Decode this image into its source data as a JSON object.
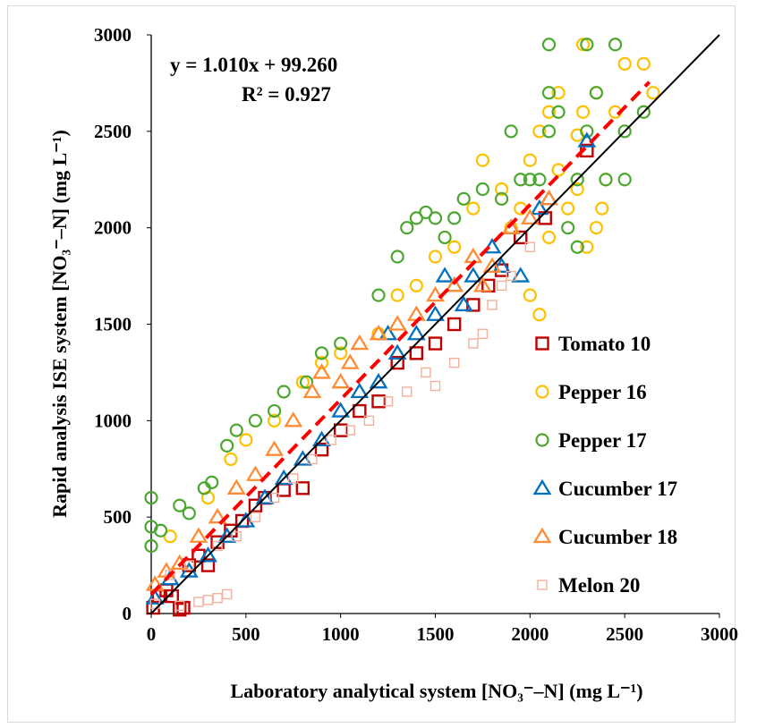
{
  "chart_data": {
    "type": "scatter",
    "xlabel": "Laboratory analytical system [NO₃⁻–N] (mg L⁻¹)",
    "ylabel": "Rapid analysis ISE system [NO₃⁻–N] (mg L⁻¹)",
    "xlim": [
      0,
      3000
    ],
    "ylim": [
      0,
      3000
    ],
    "x_ticks": [
      "0",
      "500",
      "1000",
      "1500",
      "2000",
      "2500",
      "3000"
    ],
    "y_ticks": [
      "0",
      "500",
      "1000",
      "1500",
      "2000",
      "2500",
      "3000"
    ],
    "grid": false,
    "legend_position": "bottom-right",
    "regression": {
      "equation": "y = 1.010x + 99.260",
      "r2": "R² = 0.927",
      "slope": 1.01,
      "intercept": 99.26,
      "color": "#ff0000",
      "x_range": [
        0,
        2630
      ]
    },
    "identity_line": {
      "x": [
        0,
        3000
      ],
      "y": [
        0,
        3000
      ],
      "color": "#000000"
    },
    "series": [
      {
        "name": "Tomato 10",
        "marker": "square",
        "color": "#c00000",
        "fill": false,
        "points": [
          [
            10,
            30
          ],
          [
            40,
            90
          ],
          [
            80,
            120
          ],
          [
            110,
            90
          ],
          [
            150,
            20
          ],
          [
            170,
            30
          ],
          [
            200,
            250
          ],
          [
            250,
            300
          ],
          [
            300,
            250
          ],
          [
            350,
            370
          ],
          [
            420,
            430
          ],
          [
            480,
            480
          ],
          [
            550,
            560
          ],
          [
            600,
            600
          ],
          [
            700,
            640
          ],
          [
            800,
            650
          ],
          [
            900,
            850
          ],
          [
            1000,
            950
          ],
          [
            1100,
            1050
          ],
          [
            1200,
            1100
          ],
          [
            1300,
            1300
          ],
          [
            1400,
            1350
          ],
          [
            1500,
            1400
          ],
          [
            1600,
            1500
          ],
          [
            1700,
            1600
          ],
          [
            1780,
            1700
          ],
          [
            1850,
            1780
          ],
          [
            1950,
            1950
          ],
          [
            2080,
            2050
          ],
          [
            2300,
            2400
          ]
        ]
      },
      {
        "name": "Pepper 16",
        "marker": "circle",
        "color": "#ffc000",
        "fill": false,
        "points": [
          [
            100,
            400
          ],
          [
            300,
            600
          ],
          [
            420,
            800
          ],
          [
            500,
            900
          ],
          [
            650,
            1000
          ],
          [
            800,
            1200
          ],
          [
            900,
            1300
          ],
          [
            1000,
            1350
          ],
          [
            1200,
            1450
          ],
          [
            1300,
            1650
          ],
          [
            1400,
            1700
          ],
          [
            1500,
            1850
          ],
          [
            1600,
            1900
          ],
          [
            1700,
            2100
          ],
          [
            1750,
            2350
          ],
          [
            1850,
            2200
          ],
          [
            1900,
            2000
          ],
          [
            1950,
            2100
          ],
          [
            2000,
            2350
          ],
          [
            2000,
            1650
          ],
          [
            2050,
            1550
          ],
          [
            2100,
            1950
          ],
          [
            2100,
            2600
          ],
          [
            2150,
            2700
          ],
          [
            2200,
            2100
          ],
          [
            2250,
            2480
          ],
          [
            2250,
            2200
          ],
          [
            2280,
            2600
          ],
          [
            2300,
            1900
          ],
          [
            2350,
            2000
          ],
          [
            2380,
            2100
          ],
          [
            2280,
            2950
          ],
          [
            2350,
            2700
          ],
          [
            2400,
            2250
          ],
          [
            2450,
            2600
          ],
          [
            2500,
            2850
          ],
          [
            2600,
            2850
          ],
          [
            2650,
            2700
          ],
          [
            2050,
            2500
          ],
          [
            2150,
            2300
          ]
        ]
      },
      {
        "name": "Pepper 17",
        "marker": "circle",
        "color": "#4ca730",
        "fill": false,
        "points": [
          [
            0,
            600
          ],
          [
            0,
            450
          ],
          [
            0,
            350
          ],
          [
            50,
            430
          ],
          [
            150,
            560
          ],
          [
            200,
            520
          ],
          [
            280,
            650
          ],
          [
            320,
            680
          ],
          [
            400,
            870
          ],
          [
            450,
            950
          ],
          [
            550,
            1000
          ],
          [
            650,
            1050
          ],
          [
            700,
            1150
          ],
          [
            820,
            1200
          ],
          [
            900,
            1350
          ],
          [
            1000,
            1400
          ],
          [
            1200,
            1650
          ],
          [
            1300,
            1850
          ],
          [
            1350,
            2000
          ],
          [
            1400,
            2050
          ],
          [
            1450,
            2080
          ],
          [
            1500,
            2050
          ],
          [
            1550,
            1950
          ],
          [
            1600,
            2050
          ],
          [
            1650,
            2150
          ],
          [
            1750,
            2200
          ],
          [
            1850,
            2150
          ],
          [
            1900,
            2500
          ],
          [
            1950,
            2250
          ],
          [
            2000,
            2250
          ],
          [
            2050,
            2250
          ],
          [
            2100,
            2500
          ],
          [
            2100,
            2700
          ],
          [
            2150,
            2600
          ],
          [
            2200,
            2000
          ],
          [
            2250,
            2250
          ],
          [
            2250,
            1900
          ],
          [
            2300,
            2500
          ],
          [
            2350,
            2700
          ],
          [
            2100,
            2950
          ],
          [
            2300,
            2950
          ],
          [
            2450,
            2950
          ],
          [
            2500,
            2500
          ],
          [
            2400,
            2250
          ],
          [
            2500,
            2250
          ],
          [
            2600,
            2600
          ]
        ]
      },
      {
        "name": "Cucumber 17",
        "marker": "triangle",
        "color": "#0070c0",
        "fill": false,
        "points": [
          [
            20,
            80
          ],
          [
            100,
            180
          ],
          [
            200,
            220
          ],
          [
            300,
            300
          ],
          [
            400,
            400
          ],
          [
            500,
            480
          ],
          [
            600,
            600
          ],
          [
            700,
            700
          ],
          [
            800,
            800
          ],
          [
            900,
            900
          ],
          [
            1000,
            1050
          ],
          [
            1100,
            1150
          ],
          [
            1200,
            1200
          ],
          [
            1250,
            1450
          ],
          [
            1300,
            1350
          ],
          [
            1400,
            1450
          ],
          [
            1500,
            1550
          ],
          [
            1550,
            1750
          ],
          [
            1600,
            1700
          ],
          [
            1650,
            1600
          ],
          [
            1700,
            1750
          ],
          [
            1800,
            1900
          ],
          [
            1850,
            1800
          ],
          [
            1900,
            2000
          ],
          [
            1950,
            1750
          ],
          [
            2050,
            2100
          ],
          [
            2100,
            2150
          ],
          [
            2300,
            2450
          ]
        ]
      },
      {
        "name": "Cucumber 18",
        "marker": "triangle",
        "color": "#ff8c35",
        "fill": false,
        "points": [
          [
            20,
            150
          ],
          [
            80,
            220
          ],
          [
            150,
            260
          ],
          [
            250,
            400
          ],
          [
            350,
            500
          ],
          [
            450,
            650
          ],
          [
            550,
            720
          ],
          [
            650,
            850
          ],
          [
            750,
            1000
          ],
          [
            850,
            1150
          ],
          [
            900,
            1250
          ],
          [
            1000,
            1200
          ],
          [
            1050,
            1300
          ],
          [
            1100,
            1400
          ],
          [
            1200,
            1450
          ],
          [
            1300,
            1500
          ],
          [
            1400,
            1550
          ],
          [
            1500,
            1650
          ],
          [
            1600,
            1700
          ],
          [
            1700,
            1850
          ],
          [
            1750,
            1700
          ],
          [
            1800,
            1800
          ],
          [
            1900,
            2000
          ],
          [
            2000,
            2050
          ],
          [
            2100,
            2150
          ]
        ]
      },
      {
        "name": "Melon 20",
        "marker": "square",
        "color": "#f4b09c",
        "fill": false,
        "points": [
          [
            20,
            50
          ],
          [
            150,
            40
          ],
          [
            250,
            60
          ],
          [
            300,
            70
          ],
          [
            350,
            80
          ],
          [
            400,
            100
          ],
          [
            100,
            200
          ],
          [
            200,
            250
          ],
          [
            350,
            350
          ],
          [
            450,
            400
          ],
          [
            550,
            500
          ],
          [
            650,
            600
          ],
          [
            750,
            700
          ],
          [
            850,
            800
          ],
          [
            950,
            900
          ],
          [
            1050,
            950
          ],
          [
            1150,
            1000
          ],
          [
            1250,
            1100
          ],
          [
            1350,
            1150
          ],
          [
            1450,
            1250
          ],
          [
            1500,
            1180
          ],
          [
            1600,
            1300
          ],
          [
            1700,
            1400
          ],
          [
            1750,
            1450
          ],
          [
            1800,
            1600
          ],
          [
            1850,
            1700
          ],
          [
            1900,
            1750
          ],
          [
            2000,
            1900
          ]
        ]
      }
    ]
  }
}
